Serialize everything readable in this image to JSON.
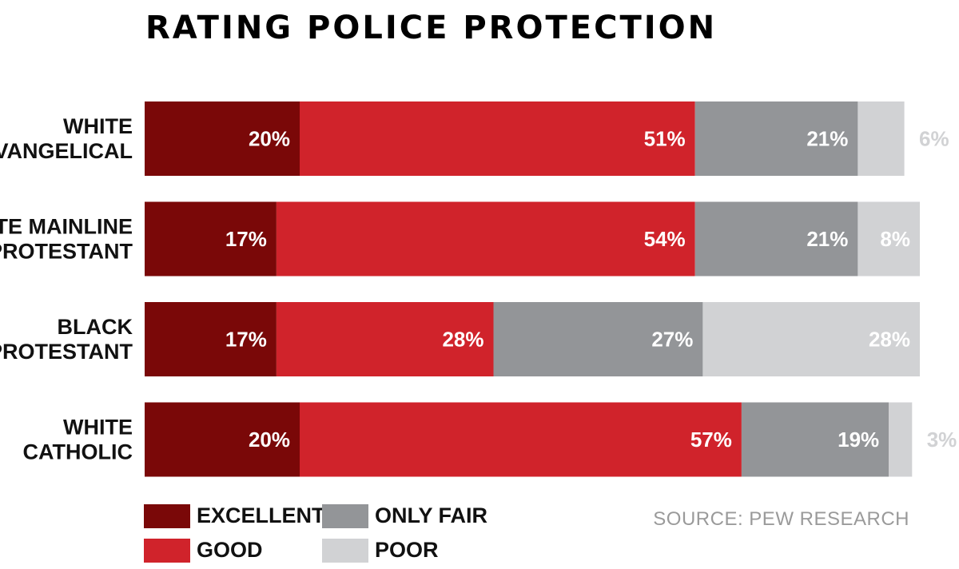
{
  "title": "RATING POLICE PROTECTION",
  "source": "SOURCE: PEW RESEARCH",
  "colors": {
    "excellent": "#7a0808",
    "good": "#d0232b",
    "only_fair": "#939598",
    "poor": "#d1d2d4",
    "label_light": "#ffffff",
    "label_outside": "#d1d2d4"
  },
  "legend": [
    {
      "label": "EXCELLENT",
      "key": "excellent"
    },
    {
      "label": "GOOD",
      "key": "good"
    },
    {
      "label": "ONLY FAIR",
      "key": "only_fair"
    },
    {
      "label": "POOR",
      "key": "poor"
    }
  ],
  "chart_data": {
    "type": "bar",
    "orientation": "horizontal",
    "stacked": true,
    "title": "RATING POLICE PROTECTION",
    "categories": [
      [
        "WHITE",
        "EVANGELICAL"
      ],
      [
        "WHITE MAINLINE",
        "PROTESTANT"
      ],
      [
        "BLACK",
        "PROTESTANT"
      ],
      [
        "WHITE",
        "CATHOLIC"
      ]
    ],
    "series": [
      {
        "name": "EXCELLENT",
        "key": "excellent",
        "values": [
          20,
          17,
          17,
          20
        ]
      },
      {
        "name": "GOOD",
        "key": "good",
        "values": [
          51,
          54,
          28,
          57
        ]
      },
      {
        "name": "ONLY FAIR",
        "key": "only_fair",
        "values": [
          21,
          21,
          27,
          19
        ]
      },
      {
        "name": "POOR",
        "key": "poor",
        "values": [
          6,
          8,
          28,
          3
        ]
      }
    ],
    "value_labels": [
      [
        "20%",
        "51%",
        "21%",
        "6%"
      ],
      [
        "17%",
        "54%",
        "21%",
        "8%"
      ],
      [
        "17%",
        "28%",
        "27%",
        "28%"
      ],
      [
        "20%",
        "57%",
        "19%",
        "3%"
      ]
    ],
    "xlim": [
      0,
      100
    ],
    "grid": false,
    "legend_position": "bottom-left"
  }
}
